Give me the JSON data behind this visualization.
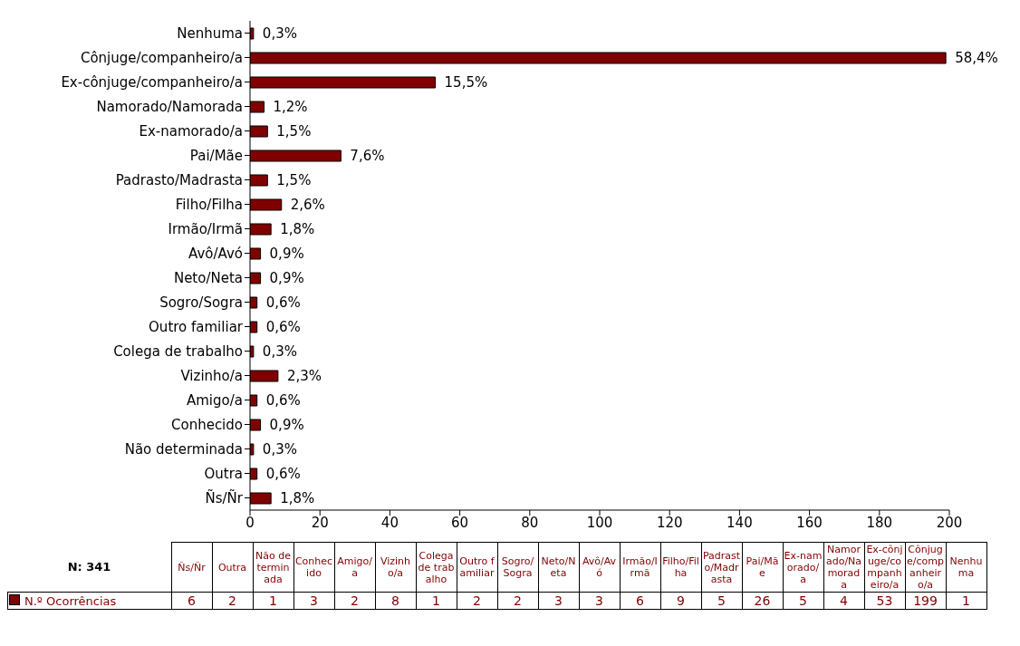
{
  "chart_data": [
    {
      "type": "bar",
      "orientation": "horizontal",
      "categories": [
        "Nenhuma",
        "Cônjuge/companheiro/a",
        "Ex-cônjuge/companheiro/a",
        "Namorado/Namorada",
        "Ex-namorado/a",
        "Pai/Mãe",
        "Padrasto/Madrasta",
        "Filho/Filha",
        "Irmão/Irmã",
        "Avô/Avó",
        "Neto/Neta",
        "Sogro/Sogra",
        "Outro familiar",
        "Colega de trabalho",
        "Vizinho/a",
        "Amigo/a",
        "Conhecido",
        "Não determinada",
        "Outra",
        "Ñs/Ñr"
      ],
      "series": [
        {
          "color": "#800000",
          "values": [
            1,
            199,
            53,
            4,
            5,
            26,
            5,
            9,
            6,
            3,
            3,
            2,
            2,
            1,
            8,
            2,
            3,
            1,
            2,
            6
          ]
        }
      ],
      "xlim": [
        0,
        200
      ],
      "xticks": [
        0,
        20,
        40,
        60,
        80,
        100,
        120,
        140,
        160,
        180,
        200
      ],
      "grid": false,
      "annotations": [
        {
          "text": "0,3%",
          "x": 1,
          "y": "Nenhuma"
        },
        {
          "text": "58,4%",
          "x": 199,
          "y": "Cônjuge/companheiro/a"
        },
        {
          "text": "15,5%",
          "x": 53,
          "y": "Ex-cônjuge/companheiro/a"
        },
        {
          "text": "1,2%",
          "x": 4,
          "y": "Namorado/Namorada"
        },
        {
          "text": "1,5%",
          "x": 5,
          "y": "Ex-namorado/a"
        },
        {
          "text": "7,6%",
          "x": 26,
          "y": "Pai/Mãe"
        },
        {
          "text": "1,5%",
          "x": 5,
          "y": "Padrasto/Madrasta"
        },
        {
          "text": "2,6%",
          "x": 9,
          "y": "Filho/Filha"
        },
        {
          "text": "1,8%",
          "x": 6,
          "y": "Irmão/Irmã"
        },
        {
          "text": "0,9%",
          "x": 3,
          "y": "Avô/Avó"
        },
        {
          "text": "0,9%",
          "x": 3,
          "y": "Neto/Neta"
        },
        {
          "text": "0,6%",
          "x": 2,
          "y": "Sogro/Sogra"
        },
        {
          "text": "0,6%",
          "x": 2,
          "y": "Outro familiar"
        },
        {
          "text": "0,3%",
          "x": 1,
          "y": "Colega de trabalho"
        },
        {
          "text": "2,3%",
          "x": 8,
          "y": "Vizinho/a"
        },
        {
          "text": "0,6%",
          "x": 2,
          "y": "Amigo/a"
        },
        {
          "text": "0,9%",
          "x": 3,
          "y": "Conhecido"
        },
        {
          "text": "0,3%",
          "x": 1,
          "y": "Não determinada"
        },
        {
          "text": "0,6%",
          "x": 2,
          "y": "Outra"
        },
        {
          "text": "1,8%",
          "x": 6,
          "y": "Ñs/Ñr"
        }
      ]
    },
    {
      "type": "other",
      "categories": [
        "Ñs/Ñr",
        "Outra",
        "Não determinada",
        "Conhecido",
        "Amigo/a",
        "Vizinho/a",
        "Colega de trabalho",
        "Outro familiar",
        "Sogro/Sogra",
        "Neto/Neta",
        "Avô/Avó",
        "Irmão/Irmã",
        "Filho/Filha",
        "Padrasto/Madrasta",
        "Pai/Mãe",
        "Ex-namorado/a",
        "Namorado/Namorada",
        "Ex-cônjuge/companheiro/a",
        "Cônjuge/companheiro/a",
        "Nenhuma"
      ],
      "series": [
        {
          "name": "N.º Ocorrências",
          "color": "#800000",
          "values": [
            6,
            2,
            1,
            3,
            2,
            8,
            1,
            2,
            2,
            3,
            3,
            6,
            9,
            5,
            26,
            5,
            4,
            53,
            199,
            1
          ]
        }
      ],
      "data_labels": true,
      "legend": "left",
      "annotations": [
        "N: 341"
      ]
    }
  ]
}
